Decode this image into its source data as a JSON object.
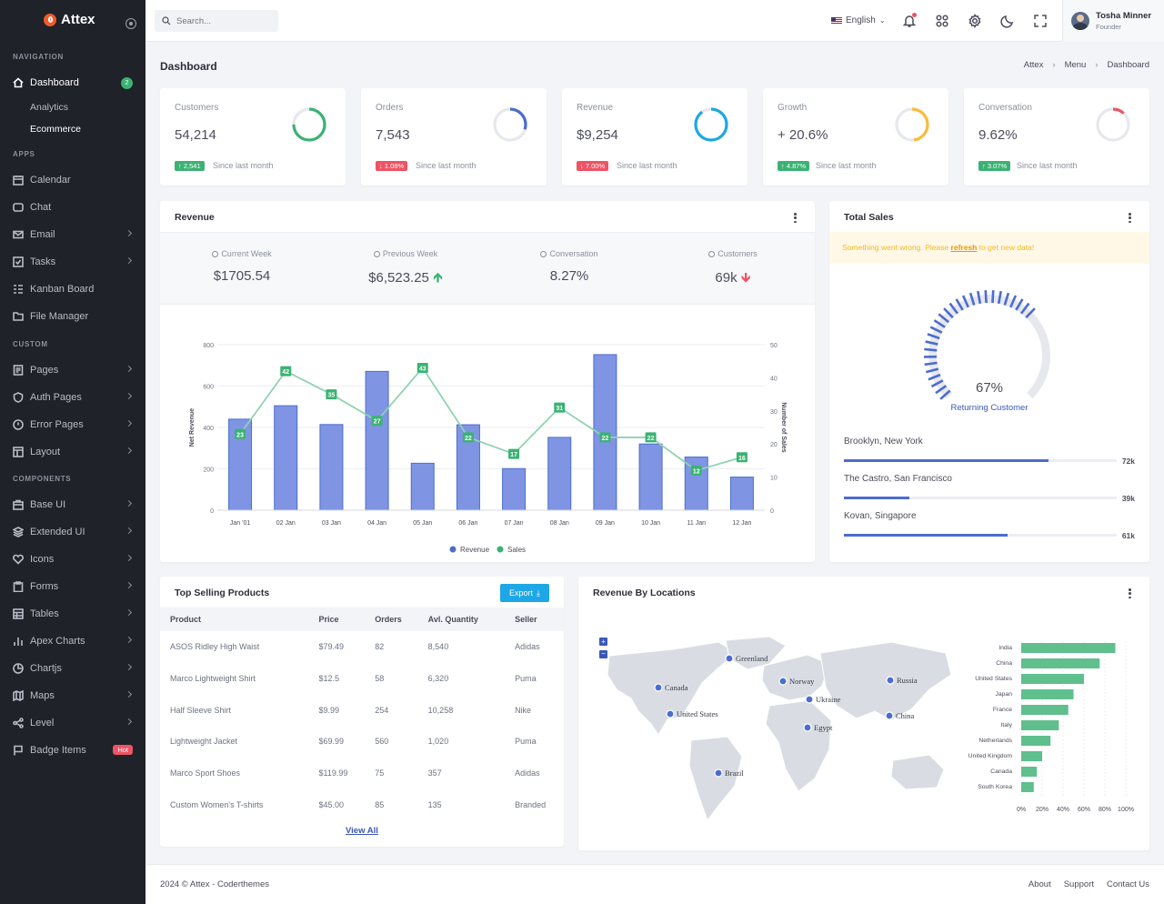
{
  "app": {
    "name": "Attex"
  },
  "sidebar": {
    "sections": [
      "Navigation",
      "Apps",
      "Custom",
      "Components"
    ],
    "dashboard": {
      "label": "Dashboard",
      "badge": "2"
    },
    "sub": [
      "Analytics",
      "Ecommerce"
    ],
    "apps": [
      "Calendar",
      "Chat",
      "Email",
      "Tasks",
      "Kanban Board",
      "File Manager"
    ],
    "custom": [
      "Pages",
      "Auth Pages",
      "Error Pages",
      "Layout"
    ],
    "components": [
      "Base UI",
      "Extended UI",
      "Icons",
      "Forms",
      "Tables",
      "Apex Charts",
      "Chartjs",
      "Maps",
      "Level",
      "Badge Items"
    ],
    "hot": "Hot"
  },
  "topbar": {
    "search_placeholder": "Search...",
    "language": "English",
    "user_name": "Tosha Minner",
    "user_role": "Founder"
  },
  "page": {
    "title": "Dashboard",
    "breadcrumb": [
      "Attex",
      "Menu",
      "Dashboard"
    ]
  },
  "stats": [
    {
      "label": "Customers",
      "value": "54,214",
      "change": "2,541",
      "dir": "up",
      "since": "Since last month",
      "color": "#3bb273",
      "pct": 0.75
    },
    {
      "label": "Orders",
      "value": "7,543",
      "change": "1.08%",
      "dir": "down",
      "since": "Since last month",
      "color": "#4b6ccf",
      "pct": 0.3
    },
    {
      "label": "Revenue",
      "value": "$9,254",
      "change": "7.00%",
      "dir": "down",
      "since": "Since last month",
      "color": "#1ea7e6",
      "pct": 0.9
    },
    {
      "label": "Growth",
      "value": "+ 20.6%",
      "change": "4.87%",
      "dir": "up",
      "since": "Since last month",
      "color": "#f9bc3c",
      "pct": 0.48
    },
    {
      "label": "Conversation",
      "value": "9.62%",
      "change": "3.07%",
      "dir": "up",
      "since": "Since last month",
      "color": "#ef5364",
      "pct": 0.12
    }
  ],
  "revenue": {
    "title": "Revenue",
    "summary": [
      {
        "label": "Current Week",
        "value": "$1705.54",
        "trend": ""
      },
      {
        "label": "Previous Week",
        "value": "$6,523.25",
        "trend": "up"
      },
      {
        "label": "Conversation",
        "value": "8.27%",
        "trend": ""
      },
      {
        "label": "Customers",
        "value": "69k",
        "trend": "down"
      }
    ]
  },
  "chart_data": [
    {
      "type": "bar",
      "title": "Revenue",
      "categories": [
        "Jan '01",
        "02 Jan",
        "03 Jan",
        "04 Jan",
        "05 Jan",
        "06 Jan",
        "07 Jan",
        "08 Jan",
        "09 Jan",
        "10 Jan",
        "11 Jan",
        "12 Jan"
      ],
      "series": [
        {
          "name": "Revenue",
          "axis": "left",
          "type": "bar",
          "color": "#7f95e3",
          "values": [
            440,
            505,
            414,
            671,
            227,
            413,
            201,
            352,
            752,
            320,
            257,
            160
          ]
        },
        {
          "name": "Sales",
          "axis": "right",
          "type": "line",
          "color": "#3bb273",
          "values": [
            23,
            42,
            35,
            27,
            43,
            22,
            17,
            31,
            22,
            22,
            12,
            16
          ]
        }
      ],
      "ylabel": "Net Revenue",
      "y2label": "Number of Sales",
      "ylim": [
        0,
        800
      ],
      "yticks": [
        0,
        200,
        400,
        600,
        800
      ],
      "y2lim": [
        0,
        50
      ],
      "y2ticks": [
        0,
        10,
        20,
        30,
        40,
        50
      ],
      "legend": "bottom"
    },
    {
      "type": "bar",
      "orientation": "horizontal",
      "title": "Revenue By Locations",
      "categories": [
        "India",
        "China",
        "United States",
        "Japan",
        "France",
        "Italy",
        "Netherlands",
        "United Kingdom",
        "Canada",
        "South Korea"
      ],
      "values": [
        90,
        75,
        60,
        50,
        45,
        36,
        28,
        20,
        15,
        12
      ],
      "xticks": [
        "0%",
        "20%",
        "40%",
        "60%",
        "80%",
        "100%"
      ],
      "xlim": [
        0,
        100
      ],
      "color": "#5fbf8d"
    }
  ],
  "total_sales": {
    "title": "Total Sales",
    "alert_pre": "Something went wrong. Please ",
    "alert_link": "refresh",
    "alert_post": " to get new data!",
    "gauge_value": "67%",
    "gauge_pct": 0.67,
    "gauge_label": "Returning Customer",
    "locations": [
      {
        "name": "Brooklyn, New York",
        "value": "72k",
        "pct": 0.75
      },
      {
        "name": "The Castro, San Francisco",
        "value": "39k",
        "pct": 0.24
      },
      {
        "name": "Kovan, Singapore",
        "value": "61k",
        "pct": 0.6
      }
    ]
  },
  "products": {
    "title": "Top Selling Products",
    "export": "Export",
    "columns": [
      "Product",
      "Price",
      "Orders",
      "Avl. Quantity",
      "Seller"
    ],
    "rows": [
      [
        "ASOS Ridley High Waist",
        "$79.49",
        "82",
        "8,540",
        "Adidas"
      ],
      [
        "Marco Lightweight Shirt",
        "$12.5",
        "58",
        "6,320",
        "Puma"
      ],
      [
        "Half Sleeve Shirt",
        "$9.99",
        "254",
        "10,258",
        "Nike"
      ],
      [
        "Lightweight Jacket",
        "$69.99",
        "560",
        "1,020",
        "Puma"
      ],
      [
        "Marco Sport Shoes",
        "$119.99",
        "75",
        "357",
        "Adidas"
      ],
      [
        "Custom Women's T-shirts",
        "$45.00",
        "85",
        "135",
        "Branded"
      ]
    ],
    "view_all": "View All"
  },
  "map": {
    "title": "Revenue By Locations",
    "markers": [
      "Greenland",
      "Canada",
      "United States",
      "Norway",
      "Ukraine",
      "Russia",
      "Egypt",
      "China",
      "Brazil"
    ]
  },
  "footer": {
    "copyright": "2024 © Attex - Coderthemes",
    "links": [
      "About",
      "Support",
      "Contact Us"
    ]
  }
}
